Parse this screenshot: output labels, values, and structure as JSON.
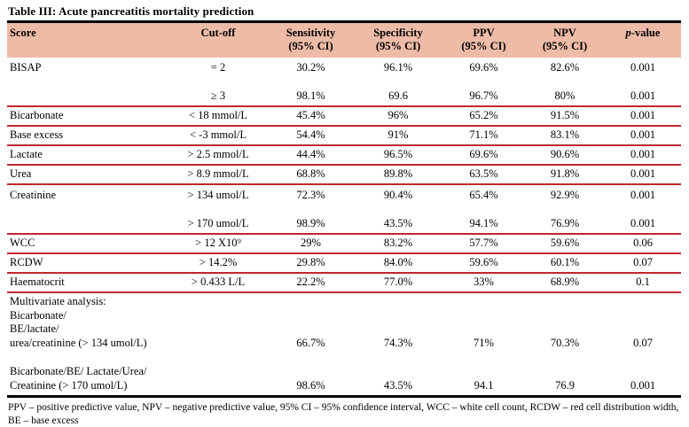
{
  "title": "Table III: Acute pancreatitis mortality prediction",
  "colors": {
    "header_background": "#eebba7",
    "row_rule_red": "#c1272d",
    "border_black": "#000000"
  },
  "table": {
    "columns": [
      {
        "label": "Score",
        "sub": ""
      },
      {
        "label": "Cut-off",
        "sub": ""
      },
      {
        "label": "Sensitivity",
        "sub": "(95% CI)"
      },
      {
        "label": "Specificity",
        "sub": "(95% CI)"
      },
      {
        "label": "PPV",
        "sub": "(95% CI)"
      },
      {
        "label": "NPV",
        "sub": "(95% CI)"
      },
      {
        "italic": "p",
        "label": "-value",
        "sub": ""
      }
    ],
    "rows": [
      {
        "score": "BISAP",
        "cutoff": "= 2",
        "sensitivity": "30.2%",
        "specificity": "96.1%",
        "ppv": "69.6%",
        "npv": "82.6%",
        "p_value": "0.001",
        "spaced": true
      },
      {
        "score": "",
        "cutoff": "≥ 3",
        "sensitivity": "98.1%",
        "specificity": "69.6",
        "ppv": "96.7%",
        "npv": "80%",
        "p_value": "0.001",
        "subrow": true,
        "rule": true
      },
      {
        "score": "Bicarbonate",
        "cutoff": "< 18 mmol/L",
        "sensitivity": "45.4%",
        "specificity": "96%",
        "ppv": "65.2%",
        "npv": "91.5%",
        "p_value": "0.001",
        "rule": true
      },
      {
        "score": "Base excess",
        "cutoff": "< -3 mmol/L",
        "sensitivity": "54.4%",
        "specificity": "91%",
        "ppv": "71.1%",
        "npv": "83.1%",
        "p_value": "0.001",
        "rule": true
      },
      {
        "score": "Lactate",
        "cutoff": "> 2.5 mmol/L",
        "sensitivity": "44.4%",
        "specificity": "96.5%",
        "ppv": "69.6%",
        "npv": "90.6%",
        "p_value": "0.001",
        "rule": true
      },
      {
        "score": "Urea",
        "cutoff": "> 8.9 mmol/L",
        "sensitivity": "68.8%",
        "specificity": "89.8%",
        "ppv": "63.5%",
        "npv": "91.8%",
        "p_value": "0.001",
        "rule": true
      },
      {
        "score": "Creatinine",
        "cutoff": "> 134 umol/L",
        "sensitivity": "72.3%",
        "specificity": "90.4%",
        "ppv": "65.4%",
        "npv": "92.9%",
        "p_value": "0.001",
        "spaced": true
      },
      {
        "score": "",
        "cutoff": "> 170 umol/L",
        "sensitivity": "98.9%",
        "specificity": "43.5%",
        "ppv": "94.1%",
        "npv": "76.9%",
        "p_value": "0.001",
        "subrow": true,
        "rule": true
      },
      {
        "score": "WCC",
        "cutoff": "> 12 X10⁹",
        "sensitivity": "29%",
        "specificity": "83.2%",
        "ppv": "57.7%",
        "npv": "59.6%",
        "p_value": "0.06",
        "rule": true
      },
      {
        "score": "RCDW",
        "cutoff": "> 14.2%",
        "sensitivity": "29.8%",
        "specificity": "84.0%",
        "ppv": "59.6%",
        "npv": "60.1%",
        "p_value": "0.07",
        "rule": true
      },
      {
        "score": "Haematocrit",
        "cutoff": "> 0.433 L/L",
        "sensitivity": "22.2%",
        "specificity": "77.0%",
        "ppv": "33%",
        "npv": "68.9%",
        "p_value": "0.1",
        "rule": true
      },
      {
        "score_lines": [
          "Multivariate analysis:",
          "Bicarbonate/",
          "BE/lactate/",
          "urea/creatinine (> 134 umol/L)"
        ],
        "cutoff": "",
        "sensitivity": "66.7%",
        "specificity": "74.3%",
        "ppv": "71%",
        "npv": "70.3%",
        "p_value": "0.07",
        "bottom_align": true
      },
      {
        "score_lines": [
          "Bicarbonate/BE/ Lactate/Urea/",
          "Creatinine (> 170 umol/L)"
        ],
        "cutoff": "",
        "sensitivity": "98.6%",
        "specificity": "43.5%",
        "ppv": "94.1",
        "npv": "76.9",
        "p_value": "0.001",
        "bottom_align": true,
        "gap_top": true
      }
    ]
  },
  "footnote": "PPV – positive predictive value, NPV – negative predictive value, 95% CI – 95% confidence interval, WCC – white cell count, RCDW – red cell distribution width, BE – base excess"
}
